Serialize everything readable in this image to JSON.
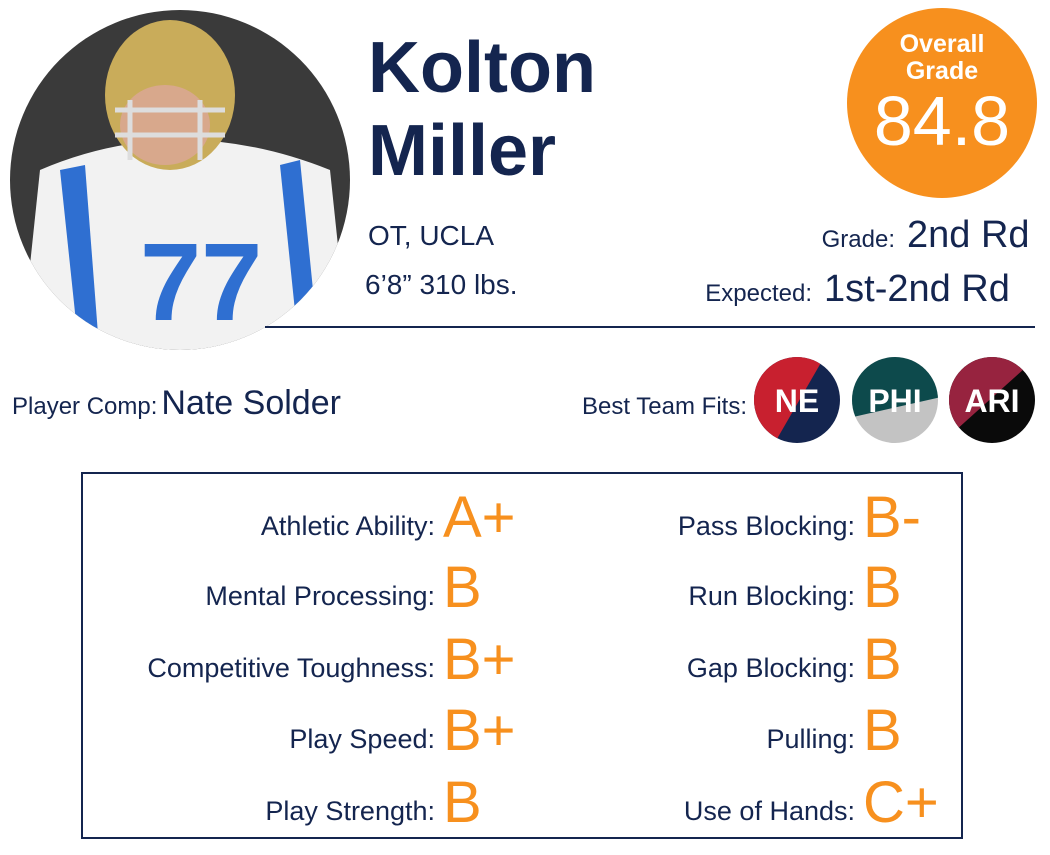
{
  "player": {
    "first_name": "Kolton",
    "last_name": "Miller",
    "position": "OT, UCLA",
    "size": "6’8” 310 lbs."
  },
  "overall": {
    "label_1": "Overall",
    "label_2": "Grade",
    "value": "84.8"
  },
  "grade": {
    "label": "Grade:",
    "value": "2nd Rd"
  },
  "expected": {
    "label": "Expected:",
    "value": "1st-2nd Rd"
  },
  "comp": {
    "label": "Player Comp:",
    "value": "Nate Solder"
  },
  "fits": {
    "label": "Best Team Fits:",
    "teams": [
      "NE",
      "PHI",
      "ARI"
    ]
  },
  "traits": {
    "left": [
      {
        "label": "Athletic Ability:",
        "grade": "A+"
      },
      {
        "label": "Mental Processing:",
        "grade": "B"
      },
      {
        "label": "Competitive Toughness:",
        "grade": "B+"
      },
      {
        "label": "Play Speed:",
        "grade": "B+"
      },
      {
        "label": "Play Strength:",
        "grade": "B"
      }
    ],
    "right": [
      {
        "label": "Pass Blocking:",
        "grade": "B-"
      },
      {
        "label": "Run Blocking:",
        "grade": "B"
      },
      {
        "label": "Gap Blocking:",
        "grade": "B"
      },
      {
        "label": "Pulling:",
        "grade": "B"
      },
      {
        "label": "Use of Hands:",
        "grade": "C+"
      }
    ]
  }
}
